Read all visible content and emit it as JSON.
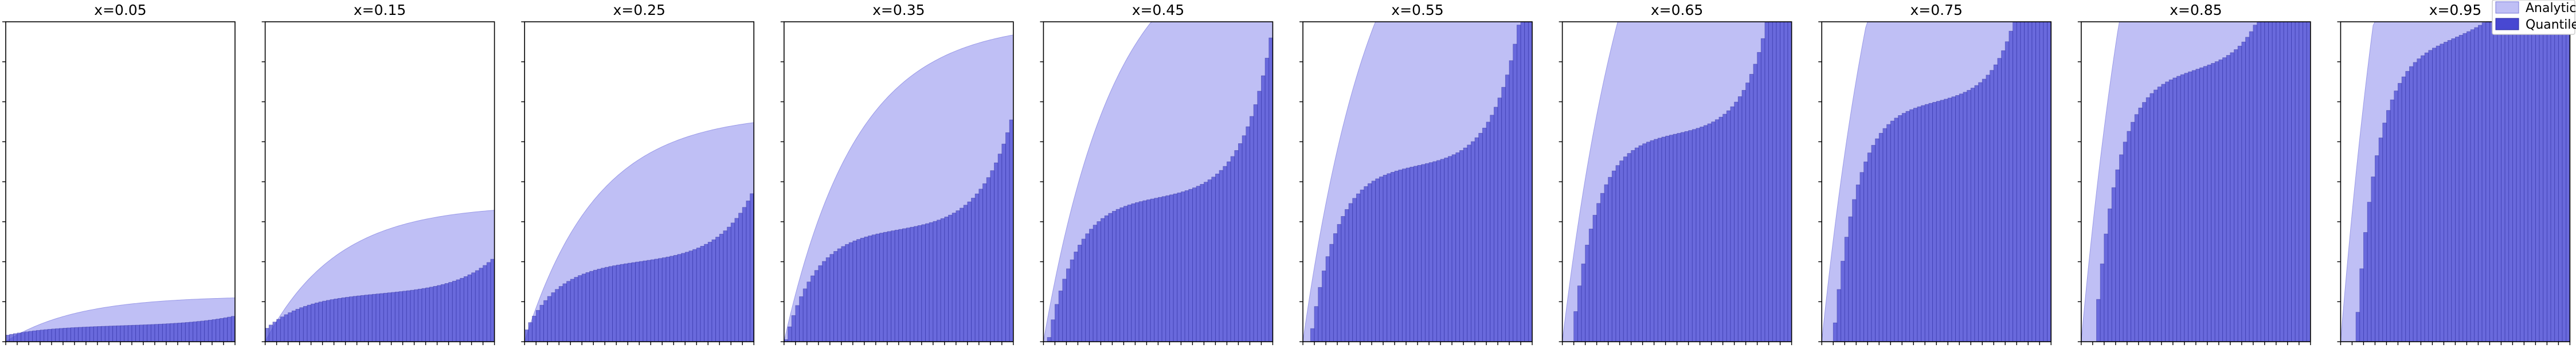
{
  "colors": {
    "analytic": "#bfbff5",
    "quantile": "#4848d2",
    "axes": "#000000"
  },
  "legend": {
    "placement": "top-right",
    "entries": [
      "Analytic",
      "Quantile"
    ]
  },
  "chart_data": [
    {
      "type": "area+bar",
      "title": "x=0.05",
      "x_param": 0.05,
      "n_bars": 60,
      "ylim": [
        0,
        1
      ],
      "tick_labels_visible": false,
      "series": [
        {
          "name": "Analytic",
          "type": "area"
        },
        {
          "name": "Quantile",
          "type": "bar"
        }
      ]
    },
    {
      "type": "area+bar",
      "title": "x=0.15",
      "x_param": 0.15,
      "n_bars": 60,
      "ylim": [
        0,
        1
      ],
      "tick_labels_visible": false,
      "series": [
        {
          "name": "Analytic",
          "type": "area"
        },
        {
          "name": "Quantile",
          "type": "bar"
        }
      ]
    },
    {
      "type": "area+bar",
      "title": "x=0.25",
      "x_param": 0.25,
      "n_bars": 60,
      "ylim": [
        0,
        1
      ],
      "tick_labels_visible": false,
      "series": [
        {
          "name": "Analytic",
          "type": "area"
        },
        {
          "name": "Quantile",
          "type": "bar"
        }
      ]
    },
    {
      "type": "area+bar",
      "title": "x=0.35",
      "x_param": 0.35,
      "n_bars": 60,
      "ylim": [
        0,
        1
      ],
      "tick_labels_visible": false,
      "series": [
        {
          "name": "Analytic",
          "type": "area"
        },
        {
          "name": "Quantile",
          "type": "bar"
        }
      ]
    },
    {
      "type": "area+bar",
      "title": "x=0.45",
      "x_param": 0.45,
      "n_bars": 60,
      "ylim": [
        0,
        1
      ],
      "tick_labels_visible": false,
      "series": [
        {
          "name": "Analytic",
          "type": "area"
        },
        {
          "name": "Quantile",
          "type": "bar"
        }
      ]
    },
    {
      "type": "area+bar",
      "title": "x=0.55",
      "x_param": 0.55,
      "n_bars": 60,
      "ylim": [
        0,
        1
      ],
      "tick_labels_visible": false,
      "series": [
        {
          "name": "Analytic",
          "type": "area"
        },
        {
          "name": "Quantile",
          "type": "bar"
        }
      ]
    },
    {
      "type": "area+bar",
      "title": "x=0.65",
      "x_param": 0.65,
      "n_bars": 60,
      "ylim": [
        0,
        1
      ],
      "tick_labels_visible": false,
      "series": [
        {
          "name": "Analytic",
          "type": "area"
        },
        {
          "name": "Quantile",
          "type": "bar"
        }
      ]
    },
    {
      "type": "area+bar",
      "title": "x=0.75",
      "x_param": 0.75,
      "n_bars": 60,
      "ylim": [
        0,
        1
      ],
      "tick_labels_visible": false,
      "series": [
        {
          "name": "Analytic",
          "type": "area"
        },
        {
          "name": "Quantile",
          "type": "bar"
        }
      ]
    },
    {
      "type": "area+bar",
      "title": "x=0.85",
      "x_param": 0.85,
      "n_bars": 60,
      "ylim": [
        0,
        1
      ],
      "tick_labels_visible": false,
      "series": [
        {
          "name": "Analytic",
          "type": "area"
        },
        {
          "name": "Quantile",
          "type": "bar"
        }
      ]
    },
    {
      "type": "area+bar",
      "title": "x=0.95",
      "x_param": 0.95,
      "n_bars": 60,
      "ylim": [
        0,
        1
      ],
      "tick_labels_visible": false,
      "series": [
        {
          "name": "Analytic",
          "type": "area"
        },
        {
          "name": "Quantile",
          "type": "bar"
        }
      ]
    }
  ]
}
